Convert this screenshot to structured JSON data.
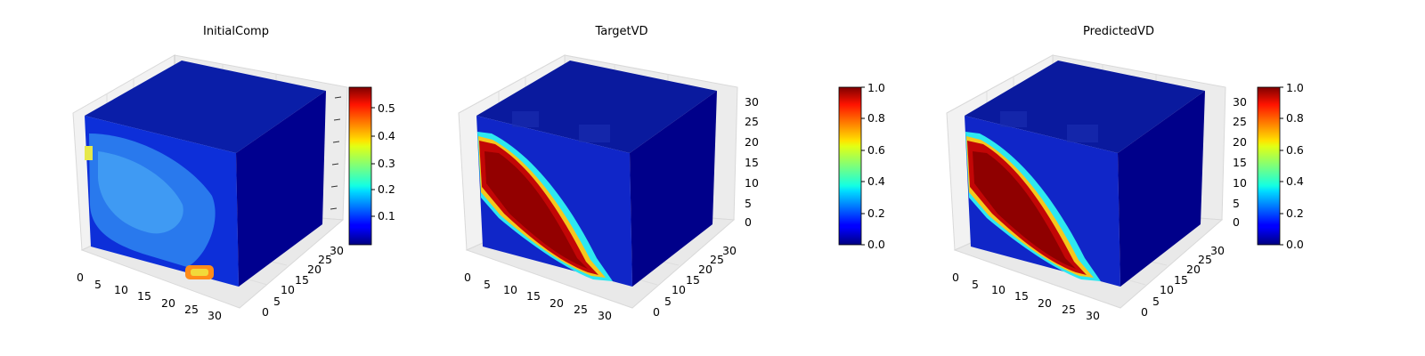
{
  "chart_data": [
    {
      "type": "heatmap",
      "subtype": "3d-voxel-cube",
      "title": "InitialComp",
      "x_ticks": [
        "0",
        "5",
        "10",
        "15",
        "20",
        "25",
        "30"
      ],
      "y_ticks": [
        "0",
        "5",
        "10",
        "15",
        "20",
        "25",
        "30"
      ],
      "z_ticks": [],
      "colormap": "jet",
      "colorbar": {
        "vmin": 0.02,
        "vmax": 0.57,
        "ticks": [
          "0.1",
          "0.2",
          "0.3",
          "0.4",
          "0.5"
        ],
        "tick_values": [
          0.1,
          0.2,
          0.3,
          0.4,
          0.5
        ]
      },
      "description_values": {
        "background": 0.05,
        "front_left_blob": 0.2,
        "bottom_hotspot": 0.5,
        "left_edge_spot": 0.35
      }
    },
    {
      "type": "heatmap",
      "subtype": "3d-voxel-cube",
      "title": "TargetVD",
      "x_ticks": [
        "0",
        "5",
        "10",
        "15",
        "20",
        "25",
        "30"
      ],
      "y_ticks": [
        "0",
        "5",
        "10",
        "15",
        "20",
        "25",
        "30"
      ],
      "z_ticks": [
        "0",
        "5",
        "10",
        "15",
        "20",
        "25",
        "30"
      ],
      "colormap": "jet",
      "colorbar": {
        "vmin": 0.0,
        "vmax": 1.0,
        "ticks": [
          "0.0",
          "0.2",
          "0.4",
          "0.6",
          "0.8",
          "1.0"
        ],
        "tick_values": [
          0.0,
          0.2,
          0.4,
          0.6,
          0.8,
          1.0
        ]
      },
      "description_values": {
        "background": 0.0,
        "diagonal_band": 1.0,
        "band_edge": 0.6
      }
    },
    {
      "type": "heatmap",
      "subtype": "3d-voxel-cube",
      "title": "PredictedVD",
      "x_ticks": [
        "0",
        "5",
        "10",
        "15",
        "20",
        "25",
        "30"
      ],
      "y_ticks": [
        "0",
        "5",
        "10",
        "15",
        "20",
        "25",
        "30"
      ],
      "z_ticks": [
        "0",
        "5",
        "10",
        "15",
        "20",
        "25",
        "30"
      ],
      "colormap": "jet",
      "colorbar": {
        "vmin": 0.0,
        "vmax": 1.0,
        "ticks": [
          "0.0",
          "0.2",
          "0.4",
          "0.6",
          "0.8",
          "1.0"
        ],
        "tick_values": [
          0.0,
          0.2,
          0.4,
          0.6,
          0.8,
          1.0
        ]
      },
      "description_values": {
        "background": 0.02,
        "diagonal_band": 0.95,
        "band_edge": 0.55
      }
    }
  ]
}
